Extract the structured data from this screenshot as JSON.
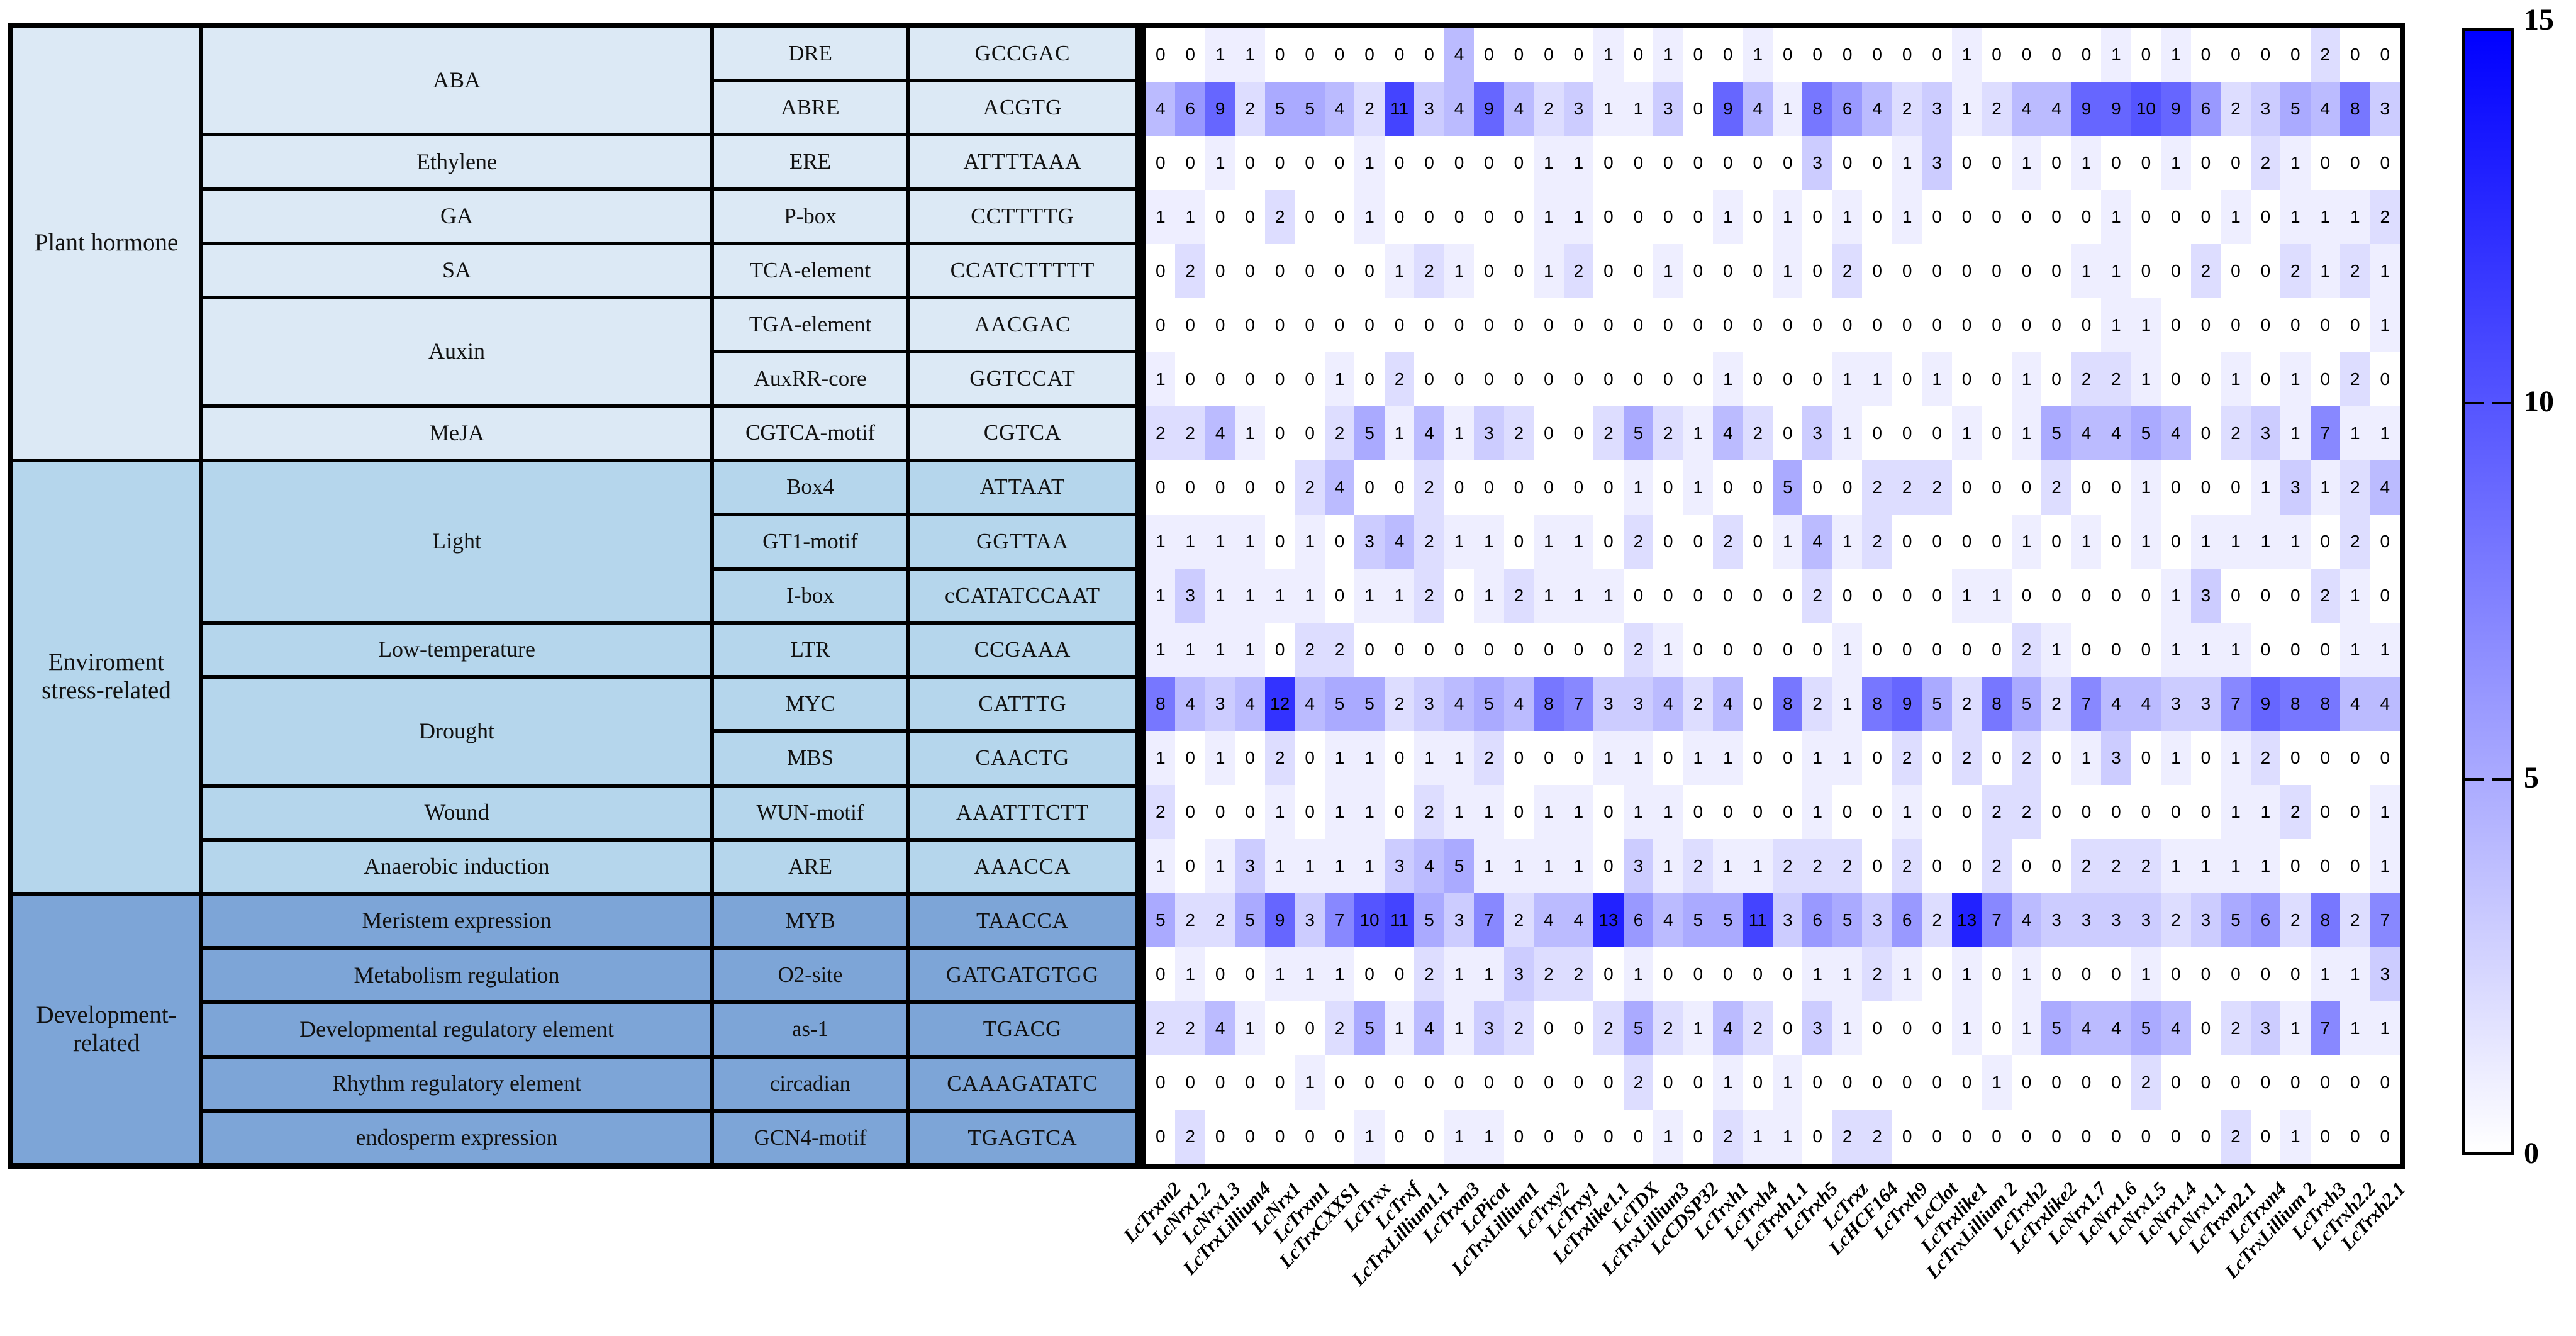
{
  "figure": {
    "description": "Cis-acting regulatory element analysis heatmap of Lc thioredoxin family gene promoters"
  },
  "table": {
    "sections": [
      {
        "category": "Plant hormone",
        "color": "#dce9f5",
        "groups": [
          {
            "element": "ABA",
            "rows": [
              {
                "motif": "DRE",
                "sequence": "GCCGAC"
              },
              {
                "motif": "ABRE",
                "sequence": "ACGTG"
              }
            ]
          },
          {
            "element": "Ethylene",
            "rows": [
              {
                "motif": "ERE",
                "sequence": "ATTTTAAA"
              }
            ]
          },
          {
            "element": "GA",
            "rows": [
              {
                "motif": "P-box",
                "sequence": "CCTTTTG"
              }
            ]
          },
          {
            "element": "SA",
            "rows": [
              {
                "motif": "TCA-element",
                "sequence": "CCATCTTTTT"
              }
            ]
          },
          {
            "element": "Auxin",
            "rows": [
              {
                "motif": "TGA-element",
                "sequence": "AACGAC"
              },
              {
                "motif": "AuxRR-core",
                "sequence": "GGTCCAT"
              }
            ]
          },
          {
            "element": "MeJA",
            "rows": [
              {
                "motif": "CGTCA-motif",
                "sequence": "CGTCA"
              }
            ]
          }
        ]
      },
      {
        "category": "Enviroment stress-related",
        "color": "#b5d6ec",
        "groups": [
          {
            "element": "Light",
            "rows": [
              {
                "motif": "Box4",
                "sequence": "ATTAAT"
              },
              {
                "motif": "GT1-motif",
                "sequence": "GGTTAA"
              },
              {
                "motif": "I-box",
                "sequence": "cCATATCCAAT"
              }
            ]
          },
          {
            "element": "Low-temperature",
            "rows": [
              {
                "motif": "LTR",
                "sequence": "CCGAAA"
              }
            ]
          },
          {
            "element": "Drought",
            "rows": [
              {
                "motif": "MYC",
                "sequence": "CATTTG"
              },
              {
                "motif": "MBS",
                "sequence": "CAACTG"
              }
            ]
          },
          {
            "element": "Wound",
            "rows": [
              {
                "motif": "WUN-motif",
                "sequence": "AAATTTCTT"
              }
            ]
          },
          {
            "element": "Anaerobic induction",
            "rows": [
              {
                "motif": "ARE",
                "sequence": "AAACCA"
              }
            ]
          }
        ]
      },
      {
        "category": "Development-related",
        "color": "#7da5d7",
        "groups": [
          {
            "element": "Meristem expression",
            "rows": [
              {
                "motif": "MYB",
                "sequence": "TAACCA"
              }
            ]
          },
          {
            "element": "Metabolism regulation",
            "rows": [
              {
                "motif": "O2-site",
                "sequence": "GATGATGTGG"
              }
            ]
          },
          {
            "element": "Developmental regulatory element",
            "rows": [
              {
                "motif": "as-1",
                "sequence": "TGACG"
              }
            ]
          },
          {
            "element": "Rhythm regulatory element",
            "rows": [
              {
                "motif": "circadian",
                "sequence": "CAAAGATATC"
              }
            ]
          },
          {
            "element": "endosperm expression",
            "rows": [
              {
                "motif": "GCN4-motif",
                "sequence": "TGAGTCA"
              }
            ]
          }
        ]
      }
    ]
  },
  "chart_data": {
    "type": "heatmap",
    "title": "",
    "legend_position": "right",
    "columns": [
      "LcTrxm2",
      "LcNrx1.2",
      "LcNrx1.3",
      "LcTrxLillium4",
      "LcNrx1",
      "LcTrxm1",
      "LcTrxCXXS1",
      "LcTrxx",
      "LcTrxf",
      "LcTrxLillium1.1",
      "LcTrxm3",
      "LcPicot",
      "LcTrxLillium1",
      "LcTrxy2",
      "LcTrxy1",
      "LcTrxlike1.1",
      "LcTDX",
      "LcTrxLillium3",
      "LcCDSP32",
      "LcTrxh1",
      "LcTrxh4",
      "LcTrxh1.1",
      "LcTrxh5",
      "LcTrxz",
      "LcHCF164",
      "LcTrxh9",
      "LcClot",
      "LcTrxlike1",
      "LcTrxLillium 2",
      "LcTrxh2",
      "LcTrxlike2",
      "LcNrx1.7",
      "LcNrx1.6",
      "LcNrx1.5",
      "LcNrx1.4",
      "LcNrx1.1",
      "LcTrxm2.1",
      "LcTrxm4",
      "LcTrxLillium 2",
      "LcTrxh3",
      "LcTrxh2.2",
      "LcTrxh2.1"
    ],
    "rows": [
      {
        "motif": "DRE",
        "values": [
          0,
          0,
          1,
          1,
          0,
          0,
          0,
          0,
          0,
          0,
          4,
          0,
          0,
          0,
          0,
          1,
          0,
          1,
          0,
          0,
          1,
          0,
          0,
          0,
          0,
          0,
          0,
          1,
          0,
          0,
          0,
          0,
          1,
          0,
          1,
          0,
          0,
          0,
          0,
          2,
          0,
          0
        ]
      },
      {
        "motif": "ABRE",
        "values": [
          4,
          6,
          9,
          2,
          5,
          5,
          4,
          2,
          11,
          3,
          4,
          9,
          4,
          2,
          3,
          1,
          1,
          3,
          0,
          9,
          4,
          1,
          8,
          6,
          4,
          2,
          3,
          1,
          2,
          4,
          4,
          9,
          9,
          10,
          9,
          6,
          2,
          3,
          5,
          4,
          8,
          3
        ]
      },
      {
        "motif": "ERE",
        "values": [
          0,
          0,
          1,
          0,
          0,
          0,
          0,
          1,
          0,
          0,
          0,
          0,
          0,
          1,
          1,
          0,
          0,
          0,
          0,
          0,
          0,
          0,
          3,
          0,
          0,
          1,
          3,
          0,
          0,
          1,
          0,
          1,
          0,
          0,
          1,
          0,
          0,
          2,
          1,
          0,
          0,
          0
        ]
      },
      {
        "motif": "P-box",
        "values": [
          1,
          1,
          0,
          0,
          2,
          0,
          0,
          1,
          0,
          0,
          0,
          0,
          0,
          1,
          1,
          0,
          0,
          0,
          0,
          1,
          0,
          1,
          0,
          1,
          0,
          1,
          0,
          0,
          0,
          0,
          0,
          0,
          1,
          0,
          0,
          0,
          1,
          0,
          1,
          1,
          1,
          2
        ]
      },
      {
        "motif": "TCA-element",
        "values": [
          0,
          2,
          0,
          0,
          0,
          0,
          0,
          0,
          1,
          2,
          1,
          0,
          0,
          1,
          2,
          0,
          0,
          1,
          0,
          0,
          0,
          1,
          0,
          2,
          0,
          0,
          0,
          0,
          0,
          0,
          0,
          1,
          1,
          0,
          0,
          2,
          0,
          0,
          2,
          1,
          2,
          1
        ]
      },
      {
        "motif": "TGA-element",
        "values": [
          0,
          0,
          0,
          0,
          0,
          0,
          0,
          0,
          0,
          0,
          0,
          0,
          0,
          0,
          0,
          0,
          0,
          0,
          0,
          0,
          0,
          0,
          0,
          0,
          0,
          0,
          0,
          0,
          0,
          0,
          0,
          0,
          1,
          1,
          0,
          0,
          0,
          0,
          0,
          0,
          0,
          1
        ]
      },
      {
        "motif": "AuxRR-core",
        "values": [
          1,
          0,
          0,
          0,
          0,
          0,
          1,
          0,
          2,
          0,
          0,
          0,
          0,
          0,
          0,
          0,
          0,
          0,
          0,
          1,
          0,
          0,
          0,
          1,
          1,
          0,
          1,
          0,
          0,
          1,
          0,
          2,
          2,
          1,
          0,
          0,
          1,
          0,
          1,
          0,
          2,
          0
        ]
      },
      {
        "motif": "CGTCA-motif",
        "values": [
          2,
          2,
          4,
          1,
          0,
          0,
          2,
          5,
          1,
          4,
          1,
          3,
          2,
          0,
          0,
          2,
          5,
          2,
          1,
          4,
          2,
          0,
          3,
          1,
          0,
          0,
          0,
          1,
          0,
          1,
          5,
          4,
          4,
          5,
          4,
          0,
          2,
          3,
          1,
          7,
          1,
          1
        ]
      },
      {
        "motif": "Box4",
        "values": [
          0,
          0,
          0,
          0,
          0,
          2,
          4,
          0,
          0,
          2,
          0,
          0,
          0,
          0,
          0,
          0,
          1,
          0,
          1,
          0,
          0,
          5,
          0,
          0,
          2,
          2,
          2,
          0,
          0,
          0,
          2,
          0,
          0,
          1,
          0,
          0,
          0,
          1,
          3,
          1,
          2,
          4
        ]
      },
      {
        "motif": "GT1-motif",
        "values": [
          1,
          1,
          1,
          1,
          0,
          1,
          0,
          3,
          4,
          2,
          1,
          1,
          0,
          1,
          1,
          0,
          2,
          0,
          0,
          2,
          0,
          1,
          4,
          1,
          2,
          0,
          0,
          0,
          0,
          1,
          0,
          1,
          0,
          1,
          0,
          1,
          1,
          1,
          1,
          0,
          2,
          0
        ]
      },
      {
        "motif": "I-box",
        "values": [
          1,
          3,
          1,
          1,
          1,
          1,
          0,
          1,
          1,
          2,
          0,
          1,
          2,
          1,
          1,
          1,
          0,
          0,
          0,
          0,
          0,
          0,
          2,
          0,
          0,
          0,
          0,
          1,
          1,
          0,
          0,
          0,
          0,
          0,
          1,
          3,
          0,
          0,
          0,
          2,
          1,
          0
        ]
      },
      {
        "motif": "LTR",
        "values": [
          1,
          1,
          1,
          1,
          0,
          2,
          2,
          0,
          0,
          0,
          0,
          0,
          0,
          0,
          0,
          0,
          2,
          1,
          0,
          0,
          0,
          0,
          0,
          1,
          0,
          0,
          0,
          0,
          0,
          2,
          1,
          0,
          0,
          0,
          1,
          1,
          1,
          0,
          0,
          0,
          1,
          1
        ]
      },
      {
        "motif": "MYC",
        "values": [
          8,
          4,
          3,
          4,
          12,
          4,
          5,
          5,
          2,
          3,
          4,
          5,
          4,
          8,
          7,
          3,
          3,
          4,
          2,
          4,
          0,
          8,
          2,
          1,
          8,
          9,
          5,
          2,
          8,
          5,
          2,
          7,
          4,
          4,
          3,
          3,
          7,
          9,
          8,
          8,
          4,
          4
        ]
      },
      {
        "motif": "MBS",
        "values": [
          1,
          0,
          1,
          0,
          2,
          0,
          1,
          1,
          0,
          1,
          1,
          2,
          0,
          0,
          0,
          1,
          1,
          0,
          1,
          1,
          0,
          0,
          1,
          1,
          0,
          2,
          0,
          2,
          0,
          2,
          0,
          1,
          3,
          0,
          1,
          0,
          1,
          2,
          0,
          0,
          0,
          0
        ]
      },
      {
        "motif": "WUN-motif",
        "values": [
          2,
          0,
          0,
          0,
          1,
          0,
          1,
          1,
          0,
          2,
          1,
          1,
          0,
          1,
          1,
          0,
          1,
          1,
          0,
          0,
          0,
          0,
          1,
          0,
          0,
          1,
          0,
          0,
          2,
          2,
          0,
          0,
          0,
          0,
          0,
          0,
          1,
          1,
          2,
          0,
          0,
          1
        ]
      },
      {
        "motif": "ARE",
        "values": [
          1,
          0,
          1,
          3,
          1,
          1,
          1,
          1,
          3,
          4,
          5,
          1,
          1,
          1,
          1,
          0,
          3,
          1,
          2,
          1,
          1,
          2,
          2,
          2,
          0,
          2,
          0,
          0,
          2,
          0,
          0,
          2,
          2,
          2,
          1,
          1,
          1,
          1,
          0,
          0,
          0,
          1
        ]
      },
      {
        "motif": "MYB",
        "values": [
          5,
          2,
          2,
          5,
          9,
          3,
          7,
          10,
          11,
          5,
          3,
          7,
          2,
          4,
          4,
          13,
          6,
          4,
          5,
          5,
          11,
          3,
          6,
          5,
          3,
          6,
          2,
          13,
          7,
          4,
          3,
          3,
          3,
          3,
          2,
          3,
          5,
          6,
          2,
          8,
          2,
          7
        ]
      },
      {
        "motif": "O2-site",
        "values": [
          0,
          1,
          0,
          0,
          1,
          1,
          1,
          0,
          0,
          2,
          1,
          1,
          3,
          2,
          2,
          0,
          1,
          0,
          0,
          0,
          0,
          0,
          1,
          1,
          2,
          1,
          0,
          1,
          0,
          1,
          0,
          0,
          0,
          1,
          0,
          0,
          0,
          0,
          0,
          1,
          1,
          3
        ]
      },
      {
        "motif": "as-1",
        "values": [
          2,
          2,
          4,
          1,
          0,
          0,
          2,
          5,
          1,
          4,
          1,
          3,
          2,
          0,
          0,
          2,
          5,
          2,
          1,
          4,
          2,
          0,
          3,
          1,
          0,
          0,
          0,
          1,
          0,
          1,
          5,
          4,
          4,
          5,
          4,
          0,
          2,
          3,
          1,
          7,
          1,
          1
        ]
      },
      {
        "motif": "circadian",
        "values": [
          0,
          0,
          0,
          0,
          0,
          1,
          0,
          0,
          0,
          0,
          0,
          0,
          0,
          0,
          0,
          0,
          2,
          0,
          0,
          1,
          0,
          1,
          0,
          0,
          0,
          0,
          0,
          0,
          1,
          0,
          0,
          0,
          0,
          2,
          0,
          0,
          0,
          0,
          0,
          0,
          0,
          0
        ]
      },
      {
        "motif": "GCN4-motif",
        "values": [
          0,
          2,
          0,
          0,
          0,
          0,
          0,
          1,
          0,
          0,
          1,
          1,
          0,
          0,
          0,
          0,
          0,
          1,
          0,
          2,
          1,
          1,
          0,
          2,
          2,
          0,
          0,
          0,
          0,
          0,
          0,
          0,
          0,
          0,
          0,
          0,
          2,
          0,
          1,
          0,
          0,
          0
        ]
      }
    ],
    "colorbar": {
      "min": 0,
      "max": 15,
      "ticks": [
        15,
        10,
        5,
        0
      ],
      "max_color": "#0000ff",
      "min_color": "#ffffff"
    }
  }
}
